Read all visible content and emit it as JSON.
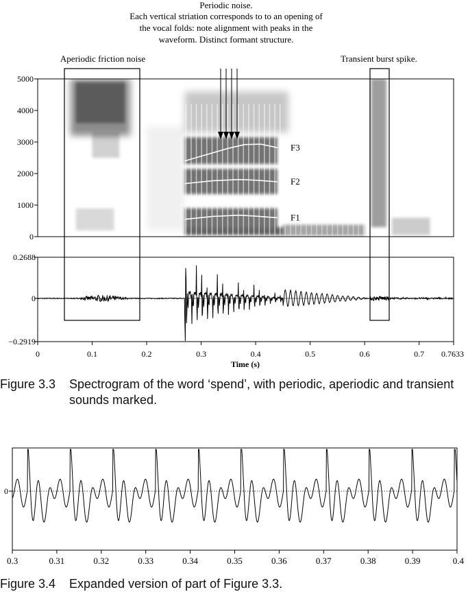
{
  "figure_3_3": {
    "annotations": {
      "periodic": [
        "Periodic noise.",
        "Each vertical striation corresponds to to an opening of",
        "the vocal folds: note alignment with peaks in the",
        "waveform. Distinct formant structure."
      ],
      "aperiodic": "Aperiodic friction noise",
      "transient": "Transient burst spike."
    },
    "caption": {
      "label": "Figure 3.3",
      "text": "Spectrogram of the word ‘spend’, with periodic, aperiodic and transient sounds marked."
    }
  },
  "figure_3_4": {
    "caption": {
      "label": "Figure 3.4",
      "text": "Expanded version of part of Figure 3.3."
    }
  },
  "colors": {
    "ink": "#000000",
    "formant_track": "#ffffff"
  },
  "chart_data": [
    {
      "type": "heatmap",
      "title": "",
      "y_ticks": [
        "0",
        "1000",
        "2000",
        "3000",
        "4000",
        "5000"
      ],
      "ylim": [
        0,
        5000
      ],
      "xlim": [
        0,
        0.7633
      ],
      "formants": [
        {
          "name": "F1",
          "t": [
            0.27,
            0.32,
            0.37,
            0.4,
            0.44
          ],
          "hz": [
            550,
            640,
            680,
            650,
            600
          ]
        },
        {
          "name": "F2",
          "t": [
            0.27,
            0.32,
            0.37,
            0.4,
            0.44
          ],
          "hz": [
            1680,
            1770,
            1810,
            1790,
            1740
          ]
        },
        {
          "name": "F3",
          "t": [
            0.27,
            0.31,
            0.35,
            0.38,
            0.41,
            0.44
          ],
          "hz": [
            2400,
            2600,
            2800,
            2920,
            2930,
            2820
          ]
        }
      ],
      "marked_regions_s": [
        [
          0.048,
          0.185
        ],
        [
          0.61,
          0.645
        ]
      ]
    },
    {
      "type": "line",
      "title": "",
      "y_ticks": [
        "0.2688",
        "0",
        "-0.2919"
      ],
      "ylim": [
        -0.2919,
        0.2688
      ],
      "x_ticks": [
        "0",
        "0.1",
        "0.2",
        "0.3",
        "0.4",
        "0.5",
        "0.6",
        "0.7",
        "0.7633"
      ],
      "xlim": [
        0,
        0.7633
      ],
      "xlabel": "Time (s)",
      "segments_s": {
        "silence": [
          [
            0,
            0.06
          ],
          [
            0.18,
            0.27
          ],
          [
            0.45,
            0.6
          ],
          [
            0.66,
            0.7633
          ]
        ],
        "friction": [
          0.07,
          0.17
        ],
        "voiced": [
          0.27,
          0.45
        ],
        "burst": [
          0.61,
          0.64
        ]
      }
    },
    {
      "type": "line",
      "title": "",
      "y_ticks": [
        "0"
      ],
      "x_ticks": [
        "0.3",
        "0.31",
        "0.32",
        "0.33",
        "0.34",
        "0.35",
        "0.36",
        "0.37",
        "0.38",
        "0.39",
        "0.4"
      ],
      "xlim": [
        0.3,
        0.4
      ],
      "glottal_period_s": 0.0096
    }
  ]
}
